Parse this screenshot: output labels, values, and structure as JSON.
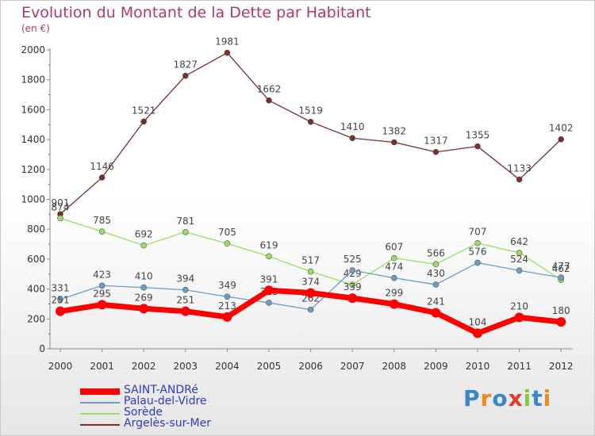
{
  "title": "Evolution du Montant de la Dette par Habitant",
  "subtitle": "(en €)",
  "logo": "Proxiti",
  "chart_data": {
    "type": "line",
    "title": "Evolution du Montant de la Dette par Habitant",
    "subtitle": "(en €)",
    "xlabel": "",
    "ylabel": "",
    "categories": [
      "2000",
      "2001",
      "2002",
      "2003",
      "2004",
      "2005",
      "2006",
      "2007",
      "2008",
      "2009",
      "2010",
      "2011",
      "2012"
    ],
    "ylim": [
      0,
      2000
    ],
    "yticks": [
      0,
      200,
      400,
      600,
      800,
      1000,
      1200,
      1400,
      1600,
      1800,
      2000
    ],
    "grid": false,
    "legend_position": "bottom-left",
    "series": [
      {
        "name": "SAINT-ANDRé",
        "color": "#ff0000",
        "values": [
          251,
          295,
          269,
          251,
          213,
          391,
          374,
          339,
          299,
          241,
          104,
          210,
          180
        ]
      },
      {
        "name": "Palau-del-Vidre",
        "color": "#6c9cc7",
        "values": [
          331,
          423,
          410,
          394,
          349,
          308,
          262,
          525,
          474,
          430,
          576,
          524,
          477
        ]
      },
      {
        "name": "Sorède",
        "color": "#99dd66",
        "values": [
          874,
          785,
          692,
          781,
          705,
          619,
          517,
          429,
          607,
          566,
          707,
          642,
          462
        ]
      },
      {
        "name": "Argelès-sur-Mer",
        "color": "#7a2d2d",
        "values": [
          901,
          1146,
          1521,
          1827,
          1981,
          1662,
          1519,
          1410,
          1382,
          1317,
          1355,
          1133,
          1402
        ]
      }
    ]
  }
}
